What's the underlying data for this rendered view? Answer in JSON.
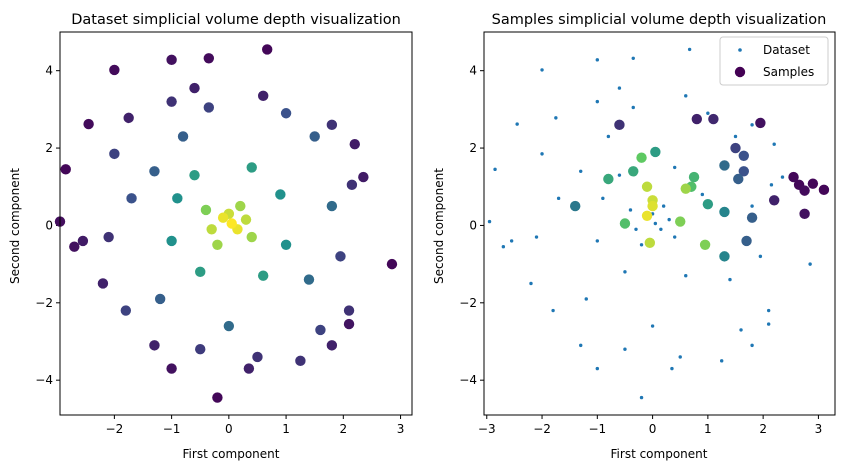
{
  "chart_data": [
    {
      "type": "scatter",
      "title": "Dataset simplicial volume depth visualization",
      "xlabel": "First component",
      "ylabel": "Second component",
      "xlim": [
        -2.95,
        3.2
      ],
      "ylim": [
        -4.9,
        5.0
      ],
      "xticks": [
        -2,
        -1,
        0,
        1,
        2,
        3
      ],
      "yticks": [
        -4,
        -2,
        0,
        2,
        4
      ],
      "colormap": [
        "#440154",
        "#3b528b",
        "#21918c",
        "#5ec962",
        "#fde725"
      ],
      "grid": false,
      "points": [
        [
          0.67,
          4.55,
          0.02
        ],
        [
          -0.35,
          4.32,
          0.03
        ],
        [
          -2.0,
          4.02,
          0.03
        ],
        [
          -1.0,
          4.28,
          0.05
        ],
        [
          -0.6,
          3.55,
          0.1
        ],
        [
          0.6,
          3.35,
          0.1
        ],
        [
          -1.0,
          3.2,
          0.15
        ],
        [
          -0.35,
          3.05,
          0.2
        ],
        [
          -2.45,
          2.62,
          0.03
        ],
        [
          -1.75,
          2.78,
          0.1
        ],
        [
          1.8,
          2.6,
          0.15
        ],
        [
          -2.85,
          1.45,
          0.02
        ],
        [
          -2.0,
          1.85,
          0.2
        ],
        [
          2.2,
          2.1,
          0.08
        ],
        [
          2.15,
          1.05,
          0.15
        ],
        [
          2.35,
          1.25,
          0.08
        ],
        [
          -2.1,
          -0.3,
          0.15
        ],
        [
          -2.7,
          -0.55,
          0.05
        ],
        [
          -2.95,
          0.1,
          0.04
        ],
        [
          -2.55,
          -0.4,
          0.08
        ],
        [
          -1.0,
          -3.7,
          0.05
        ],
        [
          -0.2,
          -4.45,
          0.02
        ],
        [
          0.35,
          -3.7,
          0.1
        ],
        [
          1.25,
          -3.5,
          0.15
        ],
        [
          2.1,
          -2.55,
          0.06
        ],
        [
          2.85,
          -1.0,
          0.02
        ],
        [
          -1.3,
          -3.1,
          0.1
        ],
        [
          -2.2,
          -1.5,
          0.1
        ],
        [
          -1.8,
          -2.2,
          0.2
        ],
        [
          1.8,
          -3.1,
          0.1
        ],
        [
          0.5,
          -3.4,
          0.15
        ],
        [
          -0.5,
          -3.2,
          0.18
        ],
        [
          1.95,
          -0.8,
          0.2
        ],
        [
          2.1,
          -2.2,
          0.15
        ],
        [
          1.6,
          -2.7,
          0.2
        ],
        [
          -1.7,
          0.7,
          0.25
        ],
        [
          -1.3,
          1.4,
          0.3
        ],
        [
          -0.8,
          2.3,
          0.3
        ],
        [
          1.0,
          2.9,
          0.25
        ],
        [
          1.5,
          2.3,
          0.3
        ],
        [
          1.8,
          0.5,
          0.35
        ],
        [
          1.4,
          -1.4,
          0.35
        ],
        [
          -1.2,
          -1.9,
          0.3
        ],
        [
          0.0,
          -2.6,
          0.35
        ],
        [
          -0.9,
          0.7,
          0.5
        ],
        [
          -0.6,
          1.3,
          0.55
        ],
        [
          0.4,
          1.5,
          0.55
        ],
        [
          0.9,
          0.8,
          0.5
        ],
        [
          1.0,
          -0.5,
          0.5
        ],
        [
          0.6,
          -1.3,
          0.55
        ],
        [
          -0.5,
          -1.2,
          0.55
        ],
        [
          -1.0,
          -0.4,
          0.5
        ],
        [
          -0.4,
          0.4,
          0.8
        ],
        [
          0.2,
          0.5,
          0.85
        ],
        [
          0.4,
          -0.3,
          0.85
        ],
        [
          -0.2,
          -0.5,
          0.85
        ],
        [
          0.05,
          0.05,
          1.0
        ],
        [
          -0.1,
          0.2,
          0.97
        ],
        [
          0.15,
          -0.1,
          0.97
        ],
        [
          0.0,
          0.3,
          0.92
        ],
        [
          -0.3,
          -0.1,
          0.9
        ],
        [
          0.3,
          0.15,
          0.9
        ]
      ]
    },
    {
      "type": "scatter",
      "title": "Samples simplicial volume depth visualization",
      "xlabel": "First component",
      "ylabel": "Second component",
      "xlim": [
        -3.05,
        3.3
      ],
      "ylim": [
        -4.9,
        5.0
      ],
      "xticks": [
        -3,
        -2,
        -1,
        0,
        1,
        2,
        3
      ],
      "yticks": [
        -4,
        -2,
        0,
        2,
        4
      ],
      "grid": false,
      "legend": {
        "position": "top-right",
        "entries": [
          "Dataset",
          "Samples"
        ]
      },
      "series": [
        {
          "name": "Dataset",
          "color": "#1f77b4",
          "points": [
            [
              0.67,
              4.55
            ],
            [
              -0.35,
              4.32
            ],
            [
              -2.0,
              4.02
            ],
            [
              -1.0,
              4.28
            ],
            [
              -0.6,
              3.55
            ],
            [
              0.6,
              3.35
            ],
            [
              -1.0,
              3.2
            ],
            [
              -0.35,
              3.05
            ],
            [
              -2.45,
              2.62
            ],
            [
              -1.75,
              2.78
            ],
            [
              1.8,
              2.6
            ],
            [
              -2.85,
              1.45
            ],
            [
              -2.0,
              1.85
            ],
            [
              2.2,
              2.1
            ],
            [
              2.15,
              1.05
            ],
            [
              2.35,
              1.25
            ],
            [
              -2.1,
              -0.3
            ],
            [
              -2.7,
              -0.55
            ],
            [
              -2.95,
              0.1
            ],
            [
              -2.55,
              -0.4
            ],
            [
              -1.0,
              -3.7
            ],
            [
              -0.2,
              -4.45
            ],
            [
              0.35,
              -3.7
            ],
            [
              1.25,
              -3.5
            ],
            [
              2.1,
              -2.55
            ],
            [
              2.85,
              -1.0
            ],
            [
              -1.3,
              -3.1
            ],
            [
              -2.2,
              -1.5
            ],
            [
              -1.8,
              -2.2
            ],
            [
              1.8,
              -3.1
            ],
            [
              0.5,
              -3.4
            ],
            [
              -0.5,
              -3.2
            ],
            [
              1.95,
              -0.8
            ],
            [
              2.1,
              -2.2
            ],
            [
              1.6,
              -2.7
            ],
            [
              -1.7,
              0.7
            ],
            [
              -1.3,
              1.4
            ],
            [
              -0.8,
              2.3
            ],
            [
              1.0,
              2.9
            ],
            [
              1.5,
              2.3
            ],
            [
              1.8,
              0.5
            ],
            [
              1.4,
              -1.4
            ],
            [
              -1.2,
              -1.9
            ],
            [
              0.0,
              -2.6
            ],
            [
              -0.9,
              0.7
            ],
            [
              -0.6,
              1.3
            ],
            [
              0.4,
              1.5
            ],
            [
              0.9,
              0.8
            ],
            [
              1.0,
              -0.5
            ],
            [
              0.6,
              -1.3
            ],
            [
              -0.5,
              -1.2
            ],
            [
              -1.0,
              -0.4
            ],
            [
              -0.4,
              0.4
            ],
            [
              0.2,
              0.5
            ],
            [
              0.4,
              -0.3
            ],
            [
              -0.2,
              -0.5
            ],
            [
              0.05,
              0.05
            ],
            [
              -0.1,
              0.2
            ],
            [
              0.15,
              -0.1
            ],
            [
              0.0,
              0.3
            ],
            [
              -0.3,
              -0.1
            ],
            [
              0.3,
              0.15
            ]
          ]
        },
        {
          "name": "Samples",
          "color": "#440154",
          "points": [
            [
              3.1,
              0.92,
              0.02
            ],
            [
              2.9,
              1.08,
              0.02
            ],
            [
              2.75,
              0.9,
              0.03
            ],
            [
              2.65,
              1.05,
              0.02
            ],
            [
              2.55,
              1.25,
              0.02
            ],
            [
              2.75,
              0.3,
              0.05
            ],
            [
              1.95,
              2.65,
              0.05
            ],
            [
              2.2,
              0.65,
              0.1
            ],
            [
              0.8,
              2.75,
              0.1
            ],
            [
              1.1,
              2.75,
              0.12
            ],
            [
              -0.6,
              2.6,
              0.15
            ],
            [
              1.5,
              2.0,
              0.2
            ],
            [
              1.65,
              1.8,
              0.25
            ],
            [
              1.65,
              1.4,
              0.25
            ],
            [
              1.55,
              1.2,
              0.3
            ],
            [
              1.8,
              0.2,
              0.3
            ],
            [
              1.7,
              -0.4,
              0.3
            ],
            [
              1.3,
              1.55,
              0.35
            ],
            [
              -1.4,
              0.5,
              0.4
            ],
            [
              1.3,
              0.35,
              0.45
            ],
            [
              1.3,
              -0.8,
              0.45
            ],
            [
              1.0,
              0.55,
              0.55
            ],
            [
              0.05,
              1.9,
              0.55
            ],
            [
              -0.8,
              1.2,
              0.6
            ],
            [
              -0.35,
              1.4,
              0.6
            ],
            [
              0.75,
              1.25,
              0.65
            ],
            [
              0.7,
              1.0,
              0.7
            ],
            [
              -0.5,
              0.05,
              0.7
            ],
            [
              -0.2,
              1.75,
              0.75
            ],
            [
              0.5,
              0.1,
              0.8
            ],
            [
              0.95,
              -0.5,
              0.8
            ],
            [
              0.6,
              0.95,
              0.85
            ],
            [
              -0.1,
              1.0,
              0.9
            ],
            [
              0.0,
              0.65,
              0.92
            ],
            [
              0.0,
              0.5,
              0.95
            ],
            [
              -0.1,
              0.25,
              0.97
            ],
            [
              -0.05,
              -0.45,
              0.9
            ]
          ]
        }
      ]
    }
  ]
}
